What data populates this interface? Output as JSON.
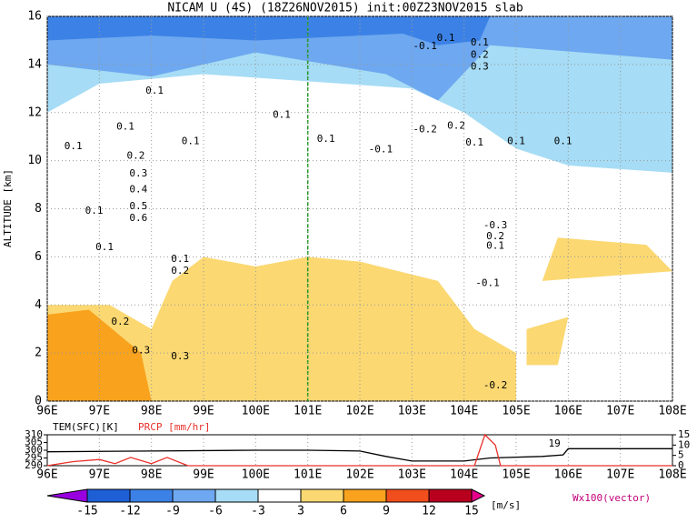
{
  "chart_data": {
    "type": "contour",
    "title": "NICAM U (4S) (18Z26NOV2015) init:00Z23NOV2015 slab",
    "y_label": "ALTITUDE [km]",
    "xlim": [
      96,
      108
    ],
    "xticks": [
      {
        "value": 96,
        "label": "96E"
      },
      {
        "value": 97,
        "label": "97E"
      },
      {
        "value": 98,
        "label": "98E"
      },
      {
        "value": 99,
        "label": "99E"
      },
      {
        "value": 100,
        "label": "100E"
      },
      {
        "value": 101,
        "label": "101E"
      },
      {
        "value": 102,
        "label": "102E"
      },
      {
        "value": 103,
        "label": "103E"
      },
      {
        "value": 104,
        "label": "104E"
      },
      {
        "value": 105,
        "label": "105E"
      },
      {
        "value": 106,
        "label": "106E"
      },
      {
        "value": 107,
        "label": "107E"
      },
      {
        "value": 108,
        "label": "108E"
      }
    ],
    "ylim": [
      0,
      16
    ],
    "yticks": [
      0,
      2,
      4,
      6,
      8,
      10,
      12,
      14,
      16
    ],
    "marker_line": 101,
    "levels": [
      -15,
      -12,
      -9,
      -6,
      -3,
      3,
      6,
      9,
      12,
      15
    ],
    "level_colors": [
      "#9900e0",
      "#1e5fd6",
      "#3c82e6",
      "#6ea8f0",
      "#a6dcf5",
      "#ffffff",
      "#fbd872",
      "#f8a21d",
      "#f04e1c",
      "#b8001e",
      "#e6008c"
    ],
    "colorbar_unit": "[m/s]",
    "vector_label": "Wx100(vector)",
    "regions": [
      {
        "level": 3,
        "points": [
          [
            96,
            16
          ],
          [
            108,
            16
          ],
          [
            108,
            9.5
          ],
          [
            106,
            9.8
          ],
          [
            105,
            10.5
          ],
          [
            104,
            12
          ],
          [
            103,
            13
          ],
          [
            101,
            13.3
          ],
          [
            99,
            13.6
          ],
          [
            97,
            13.2
          ],
          [
            96,
            12
          ]
        ]
      },
      {
        "level": 6,
        "points": [
          [
            96,
            16
          ],
          [
            108,
            16
          ],
          [
            108,
            14.2
          ],
          [
            104.5,
            14.8
          ],
          [
            103.5,
            12.5
          ],
          [
            102.5,
            13.6
          ],
          [
            100,
            14.5
          ],
          [
            98,
            13.5
          ],
          [
            96,
            14
          ]
        ]
      },
      {
        "level": 9,
        "points": [
          [
            96,
            16
          ],
          [
            103,
            16
          ],
          [
            103,
            15.3
          ],
          [
            100,
            15
          ],
          [
            98,
            15.2
          ],
          [
            96,
            15
          ]
        ]
      },
      {
        "level": 9,
        "points": [
          [
            102.8,
            16
          ],
          [
            104.5,
            16
          ],
          [
            104.3,
            15
          ],
          [
            103.5,
            14.8
          ],
          [
            102.8,
            15.3
          ]
        ]
      },
      {
        "level": 4,
        "points": [
          [
            96.8,
            0
          ],
          [
            105,
            0
          ],
          [
            105,
            2
          ],
          [
            104.2,
            3
          ],
          [
            103.5,
            5
          ],
          [
            102,
            5.8
          ],
          [
            101,
            6
          ],
          [
            100,
            5.6
          ],
          [
            99,
            6
          ],
          [
            98.4,
            5
          ],
          [
            98,
            3
          ],
          [
            97.2,
            4
          ],
          [
            96,
            4
          ],
          [
            96,
            0
          ]
        ]
      },
      {
        "level": 4,
        "points": [
          [
            105.2,
            3
          ],
          [
            106,
            3.5
          ],
          [
            105.8,
            1.5
          ],
          [
            105.2,
            1.5
          ]
        ]
      },
      {
        "level": 4,
        "points": [
          [
            105.5,
            5
          ],
          [
            108,
            5.4
          ],
          [
            107.5,
            6.5
          ],
          [
            105.8,
            6.8
          ]
        ]
      },
      {
        "level": 7,
        "points": [
          [
            96,
            3.6
          ],
          [
            96.8,
            3.8
          ],
          [
            97.8,
            2
          ],
          [
            98,
            0
          ],
          [
            96,
            0
          ]
        ]
      }
    ],
    "contour_labels": [
      {
        "text": "0.1",
        "x": 98.06,
        "y": 12.9
      },
      {
        "text": "0.1",
        "x": 96.5,
        "y": 10.6
      },
      {
        "text": "0.1",
        "x": 97.5,
        "y": 11.4
      },
      {
        "text": "0.2",
        "x": 97.7,
        "y": 10.2
      },
      {
        "text": "0.3",
        "x": 97.75,
        "y": 9.45
      },
      {
        "text": "0.4",
        "x": 97.75,
        "y": 8.8
      },
      {
        "text": "0.5",
        "x": 97.75,
        "y": 8.1
      },
      {
        "text": "0.6",
        "x": 97.75,
        "y": 7.6
      },
      {
        "text": "0.1",
        "x": 96.9,
        "y": 7.9
      },
      {
        "text": "0.1",
        "x": 97.1,
        "y": 6.4
      },
      {
        "text": "0.1",
        "x": 98.55,
        "y": 5.9
      },
      {
        "text": "0.2",
        "x": 98.55,
        "y": 5.4
      },
      {
        "text": "0.2",
        "x": 97.4,
        "y": 3.3
      },
      {
        "text": "0.3",
        "x": 98.55,
        "y": 1.85
      },
      {
        "text": "0.3",
        "x": 97.8,
        "y": 2.1
      },
      {
        "text": "0.1",
        "x": 98.75,
        "y": 10.8
      },
      {
        "text": "0.1",
        "x": 100.5,
        "y": 11.9
      },
      {
        "text": "0.1",
        "x": 101.35,
        "y": 10.9
      },
      {
        "text": "-0.1",
        "x": 102.4,
        "y": 10.45
      },
      {
        "text": "-0.2",
        "x": 103.25,
        "y": 11.3
      },
      {
        "text": "0.2",
        "x": 103.85,
        "y": 11.45
      },
      {
        "text": "0.1",
        "x": 104.2,
        "y": 10.75
      },
      {
        "text": "0.1",
        "x": 105,
        "y": 10.8
      },
      {
        "text": "0.1",
        "x": 105.9,
        "y": 10.8
      },
      {
        "text": "-0.1",
        "x": 103.25,
        "y": 14.75
      },
      {
        "text": "0.1",
        "x": 103.65,
        "y": 15.1
      },
      {
        "text": "0.1",
        "x": 104.3,
        "y": 14.9
      },
      {
        "text": "0.2",
        "x": 104.3,
        "y": 14.4
      },
      {
        "text": "0.3",
        "x": 104.3,
        "y": 13.9
      },
      {
        "text": "-0.3",
        "x": 104.6,
        "y": 7.3
      },
      {
        "text": "0.2",
        "x": 104.6,
        "y": 6.85
      },
      {
        "text": "0.1",
        "x": 104.6,
        "y": 6.45
      },
      {
        "text": "-0.1",
        "x": 104.45,
        "y": 4.9
      },
      {
        "text": "-0.2",
        "x": 104.6,
        "y": 0.65
      }
    ],
    "sub_panel": {
      "labels": [
        "TEM(SFC)[K]",
        "PRCP [mm/hr]"
      ],
      "ylim": [
        290,
        310
      ],
      "yticks": [
        290,
        295,
        300,
        305,
        310
      ],
      "y2lim": [
        0,
        15
      ],
      "y2ticks": [
        0,
        5,
        10,
        15
      ],
      "annotation": {
        "text": "19",
        "x": 105.85
      },
      "series": [
        {
          "name": "TEM(SFC)[K]",
          "color": "#000000",
          "x": [
            96,
            98,
            100,
            101,
            102,
            102.5,
            103,
            104,
            104.5,
            105.5,
            105.9,
            106,
            108
          ],
          "values": [
            299,
            299.5,
            300,
            300,
            299.5,
            296,
            293,
            293,
            295,
            296,
            297,
            301,
            301
          ]
        },
        {
          "name": "PRCP [mm/hr]",
          "color": "#e8302a",
          "axis": "y2",
          "x": [
            96,
            96.5,
            97,
            97.3,
            97.6,
            98,
            98.3,
            98.7,
            104.2,
            104.4,
            104.6,
            104.7,
            108
          ],
          "values": [
            0,
            2,
            3,
            1,
            4,
            1,
            4,
            0,
            0,
            15,
            10,
            0,
            0
          ]
        }
      ]
    }
  }
}
